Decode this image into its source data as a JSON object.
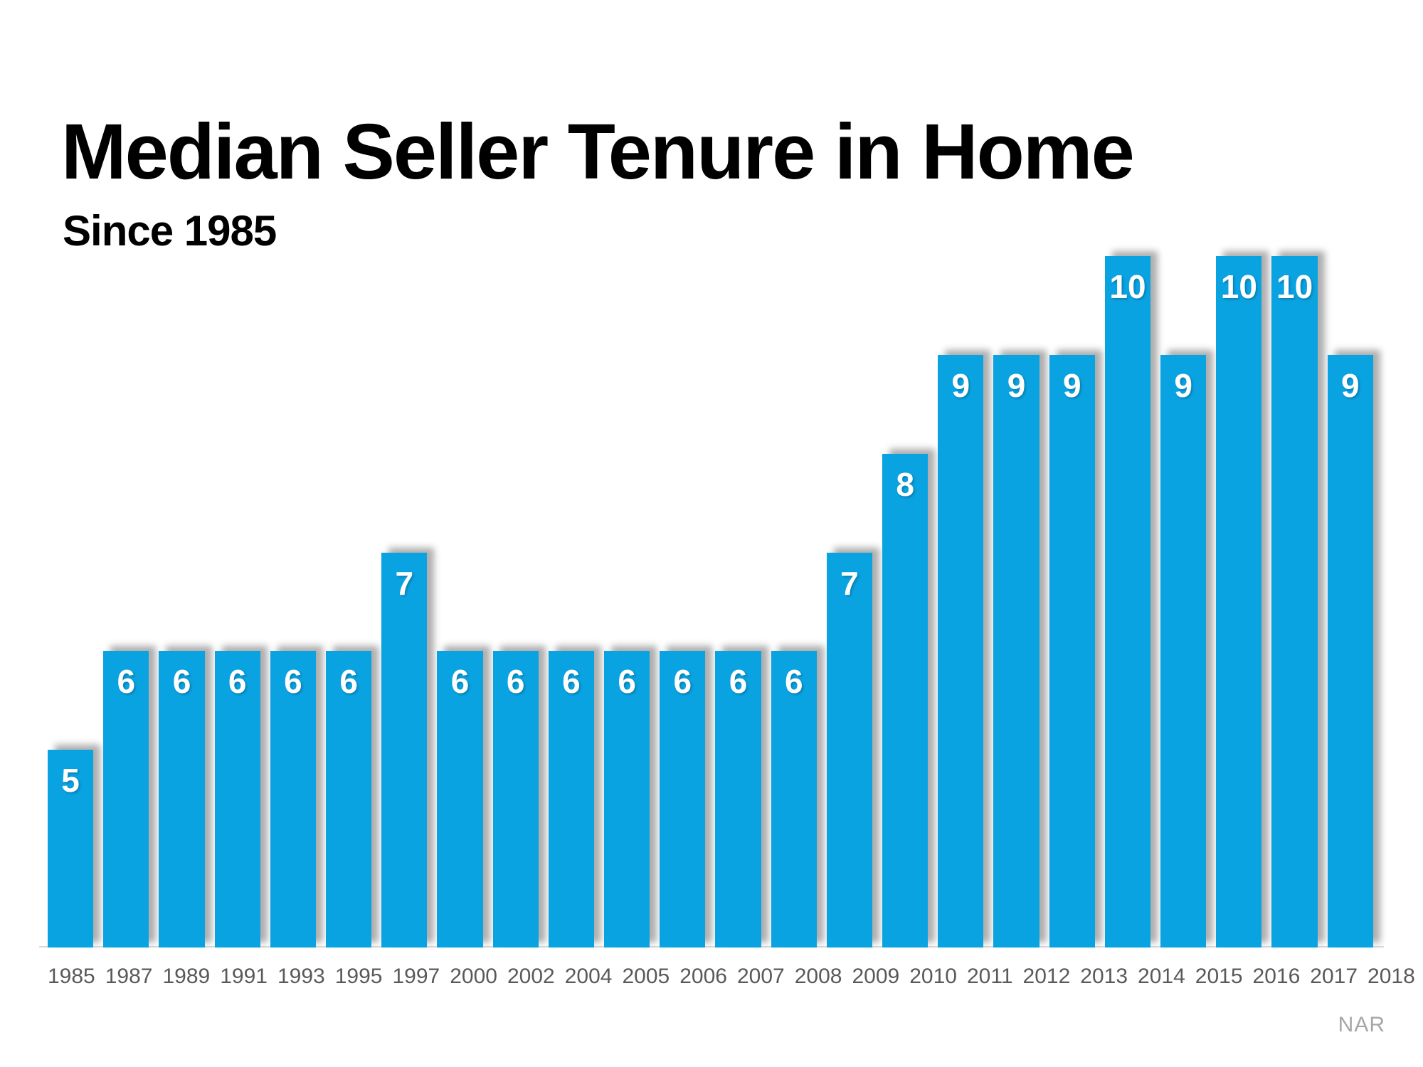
{
  "colors": {
    "bar": "#0AA3E2",
    "bar_label": "#ffffff",
    "axis_label": "#595959",
    "title": "#000000",
    "source": "#a6a6a6",
    "axis_line": "#d9d9d9",
    "background": "#ffffff"
  },
  "chart_data": {
    "type": "bar",
    "title": "Median Seller Tenure in Home",
    "subtitle": "Since 1985",
    "source": "NAR",
    "categories": [
      "1985",
      "1987",
      "1989",
      "1991",
      "1993",
      "1995",
      "1997",
      "2000",
      "2002",
      "2004",
      "2005",
      "2006",
      "2007",
      "2008",
      "2009",
      "2010",
      "2011",
      "2012",
      "2013",
      "2014",
      "2015",
      "2016",
      "2017",
      "2018"
    ],
    "values": [
      5,
      6,
      6,
      6,
      6,
      6,
      7,
      6,
      6,
      6,
      6,
      6,
      6,
      6,
      7,
      8,
      9,
      9,
      9,
      10,
      9,
      10,
      10,
      9
    ],
    "xlabel": "",
    "ylabel": "",
    "ylim": [
      3,
      10
    ],
    "y_axis_shown": false,
    "grid": false,
    "legend": "none",
    "bar_labels_shown": true,
    "bar_label_position": "inside-top"
  }
}
